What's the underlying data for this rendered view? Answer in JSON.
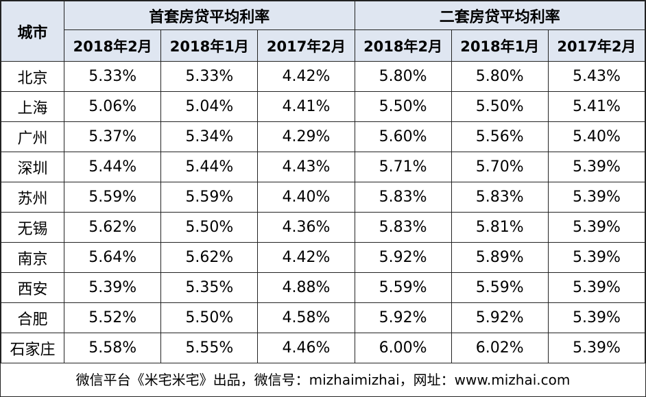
{
  "table": {
    "city_header": "城市",
    "groups": [
      {
        "label": "首套房贷平均利率",
        "columns": [
          "2018年2月",
          "2018年1月",
          "2017年2月"
        ]
      },
      {
        "label": "二套房贷平均利率",
        "columns": [
          "2018年2月",
          "2018年1月",
          "2017年2月"
        ]
      }
    ],
    "rows": [
      {
        "city": "北京",
        "values": [
          "5.33%",
          "5.33%",
          "4.42%",
          "5.80%",
          "5.80%",
          "5.43%"
        ]
      },
      {
        "city": "上海",
        "values": [
          "5.06%",
          "5.04%",
          "4.41%",
          "5.50%",
          "5.50%",
          "5.41%"
        ]
      },
      {
        "city": "广州",
        "values": [
          "5.37%",
          "5.34%",
          "4.29%",
          "5.60%",
          "5.56%",
          "5.40%"
        ]
      },
      {
        "city": "深圳",
        "values": [
          "5.44%",
          "5.44%",
          "4.43%",
          "5.71%",
          "5.70%",
          "5.39%"
        ]
      },
      {
        "city": "苏州",
        "values": [
          "5.59%",
          "5.59%",
          "4.40%",
          "5.83%",
          "5.83%",
          "5.39%"
        ]
      },
      {
        "city": "无锡",
        "values": [
          "5.62%",
          "5.50%",
          "4.36%",
          "5.83%",
          "5.81%",
          "5.39%"
        ]
      },
      {
        "city": "南京",
        "values": [
          "5.64%",
          "5.62%",
          "4.42%",
          "5.92%",
          "5.89%",
          "5.39%"
        ]
      },
      {
        "city": "西安",
        "values": [
          "5.39%",
          "5.35%",
          "4.88%",
          "5.59%",
          "5.59%",
          "5.39%"
        ]
      },
      {
        "city": "合肥",
        "values": [
          "5.52%",
          "5.50%",
          "4.58%",
          "5.92%",
          "5.92%",
          "5.39%"
        ]
      },
      {
        "city": "石家庄",
        "values": [
          "5.58%",
          "5.55%",
          "4.46%",
          "6.00%",
          "6.02%",
          "5.39%"
        ]
      }
    ]
  },
  "footer": {
    "text": "微信平台《米宅米宅》出品，微信号：mizhaimizhai，网址：www.mizhai.com"
  },
  "colors": {
    "header_bg": "#dfe6f1",
    "border": "#222222"
  }
}
